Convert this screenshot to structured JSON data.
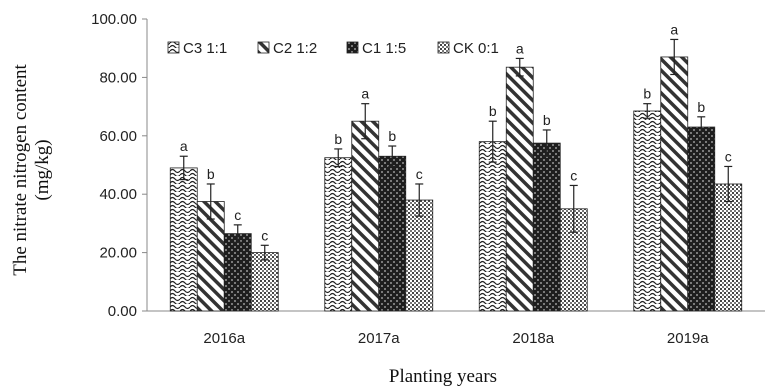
{
  "chart_data": {
    "type": "bar",
    "title": "",
    "xlabel": "Planting years",
    "ylabel_line1": "The nitrate nitrogen content",
    "ylabel_line2": "(mg/kg)",
    "categories": [
      "2016a",
      "2017a",
      "2018a",
      "2019a"
    ],
    "ylim": [
      0,
      100
    ],
    "yticks": [
      "0.00",
      "20.00",
      "40.00",
      "60.00",
      "80.00",
      "100.00"
    ],
    "grid": false,
    "legend_position": "top-left",
    "series": [
      {
        "name": "C3 1:1",
        "pattern": "wave",
        "values": [
          49.0,
          52.5,
          58.0,
          68.5
        ],
        "errors": [
          4.0,
          3.0,
          7.0,
          2.5
        ],
        "labels": [
          "a",
          "b",
          "b",
          "b"
        ]
      },
      {
        "name": "C2 1:2",
        "pattern": "diagonal",
        "values": [
          37.5,
          65.0,
          83.5,
          87.0
        ],
        "errors": [
          6.0,
          6.0,
          3.0,
          6.0
        ],
        "labels": [
          "b",
          "a",
          "a",
          "a"
        ]
      },
      {
        "name": "C1 1:5",
        "pattern": "dark-check",
        "values": [
          26.5,
          53.0,
          57.5,
          63.0
        ],
        "errors": [
          3.0,
          3.5,
          4.5,
          3.5
        ],
        "labels": [
          "c",
          "b",
          "b",
          "b"
        ]
      },
      {
        "name": "CK 0:1",
        "pattern": "dots",
        "values": [
          20.0,
          38.0,
          35.0,
          43.5
        ],
        "errors": [
          2.5,
          5.5,
          8.0,
          6.0
        ],
        "labels": [
          "c",
          "c",
          "c",
          "c"
        ]
      }
    ]
  }
}
